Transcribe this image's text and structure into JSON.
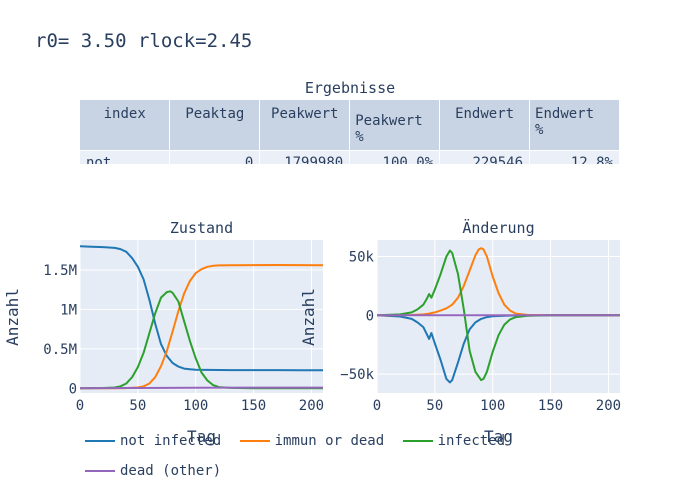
{
  "title": "r0= 3.50 rlock=2.45",
  "table": {
    "title": "Ergebnisse",
    "headers": [
      "index",
      "Peaktag",
      "Peakwert",
      "Peakwert\n%",
      "Endwert",
      "Endwert\n%"
    ],
    "rows": [
      [
        "not",
        "0",
        "1799980",
        "100.0%",
        "229546",
        "12.8%"
      ]
    ]
  },
  "chart_data": [
    {
      "type": "line",
      "title": "Zustand",
      "xlabel": "Tag",
      "ylabel": "Anzahl",
      "xlim": [
        0,
        210
      ],
      "ylim": [
        -60000,
        1880000
      ],
      "xticks": [
        0,
        50,
        100,
        150,
        200
      ],
      "xtick_labels": [
        "0",
        "50",
        "100",
        "150",
        "200"
      ],
      "yticks": [
        0,
        500000,
        1000000,
        1500000
      ],
      "ytick_labels": [
        "0",
        "0.5M",
        "1M",
        "1.5M"
      ],
      "grid": true,
      "series": [
        {
          "name": "not infected",
          "color": "#1f77b4",
          "x": [
            0,
            10,
            20,
            30,
            35,
            40,
            45,
            50,
            55,
            60,
            65,
            70,
            75,
            80,
            85,
            90,
            95,
            100,
            110,
            120,
            130,
            150,
            170,
            190,
            210
          ],
          "y": [
            1800000,
            1795000,
            1790000,
            1780000,
            1765000,
            1730000,
            1650000,
            1540000,
            1380000,
            1120000,
            820000,
            560000,
            410000,
            320000,
            275000,
            250000,
            240000,
            236000,
            233000,
            232000,
            231000,
            230500,
            230000,
            229700,
            229546
          ]
        },
        {
          "name": "immun or dead",
          "color": "#ff7f0e",
          "x": [
            0,
            30,
            40,
            50,
            55,
            60,
            65,
            70,
            75,
            80,
            85,
            90,
            95,
            100,
            105,
            110,
            115,
            120,
            130,
            150,
            170,
            190,
            210
          ],
          "y": [
            0,
            500,
            2000,
            10000,
            25000,
            60000,
            140000,
            280000,
            470000,
            720000,
            980000,
            1200000,
            1360000,
            1460000,
            1510000,
            1540000,
            1553000,
            1558000,
            1560000,
            1562000,
            1563000,
            1562000,
            1561000
          ]
        },
        {
          "name": "infected",
          "color": "#2ca02c",
          "x": [
            0,
            20,
            30,
            35,
            40,
            45,
            50,
            55,
            60,
            65,
            70,
            75,
            78,
            80,
            85,
            90,
            95,
            100,
            105,
            110,
            115,
            120,
            130,
            150,
            170,
            210
          ],
          "y": [
            0,
            3000,
            10000,
            25000,
            60000,
            140000,
            270000,
            450000,
            700000,
            950000,
            1150000,
            1220000,
            1230000,
            1210000,
            1100000,
            850000,
            600000,
            380000,
            200000,
            100000,
            40000,
            15000,
            5000,
            1000,
            300,
            100
          ]
        },
        {
          "name": "dead (other)",
          "color": "#9467bd",
          "x": [
            0,
            50,
            100,
            150,
            210
          ],
          "y": [
            0,
            3000,
            7000,
            8500,
            9000
          ]
        }
      ]
    },
    {
      "type": "line",
      "title": "Änderung",
      "xlabel": "Tag",
      "ylabel": "Anzahl",
      "xlim": [
        0,
        210
      ],
      "ylim": [
        -66000,
        64000
      ],
      "xticks": [
        0,
        50,
        100,
        150,
        200
      ],
      "xtick_labels": [
        "0",
        "50",
        "100",
        "150",
        "200"
      ],
      "yticks": [
        -50000,
        0,
        50000
      ],
      "ytick_labels": [
        "−50k",
        "0",
        "50k"
      ],
      "grid": true,
      "series": [
        {
          "name": "not infected",
          "color": "#1f77b4",
          "x": [
            0,
            20,
            30,
            35,
            40,
            43,
            45,
            47,
            50,
            55,
            60,
            63,
            65,
            70,
            75,
            80,
            85,
            90,
            95,
            100,
            110,
            130,
            160,
            210
          ],
          "y": [
            0,
            -1000,
            -3000,
            -6000,
            -10000,
            -16000,
            -20000,
            -15000,
            -24000,
            -38000,
            -54000,
            -57000,
            -55000,
            -40000,
            -24000,
            -12000,
            -6000,
            -3000,
            -1500,
            -800,
            -300,
            0,
            0,
            0
          ]
        },
        {
          "name": "immun or dead",
          "color": "#ff7f0e",
          "x": [
            0,
            30,
            40,
            45,
            50,
            55,
            60,
            65,
            70,
            75,
            80,
            85,
            88,
            90,
            92,
            95,
            100,
            105,
            110,
            115,
            120,
            130,
            150,
            210
          ],
          "y": [
            0,
            300,
            800,
            1500,
            2500,
            4000,
            6000,
            9000,
            15000,
            25000,
            38000,
            51000,
            56000,
            57000,
            56000,
            50000,
            33000,
            19000,
            9000,
            4000,
            1500,
            400,
            0,
            0
          ]
        },
        {
          "name": "infected",
          "color": "#2ca02c",
          "x": [
            0,
            20,
            30,
            35,
            40,
            43,
            45,
            47,
            50,
            55,
            60,
            63,
            65,
            70,
            75,
            80,
            85,
            90,
            92,
            95,
            100,
            105,
            110,
            115,
            120,
            130,
            150,
            210
          ],
          "y": [
            0,
            800,
            2500,
            5000,
            9000,
            14000,
            18000,
            15000,
            22000,
            35000,
            50000,
            55000,
            53000,
            35000,
            5000,
            -30000,
            -48000,
            -55000,
            -54000,
            -48000,
            -31000,
            -17000,
            -8000,
            -3500,
            -1500,
            -400,
            0,
            0
          ]
        },
        {
          "name": "dead (other)",
          "color": "#9467bd",
          "x": [
            0,
            210
          ],
          "y": [
            0,
            0
          ]
        }
      ]
    }
  ]
}
